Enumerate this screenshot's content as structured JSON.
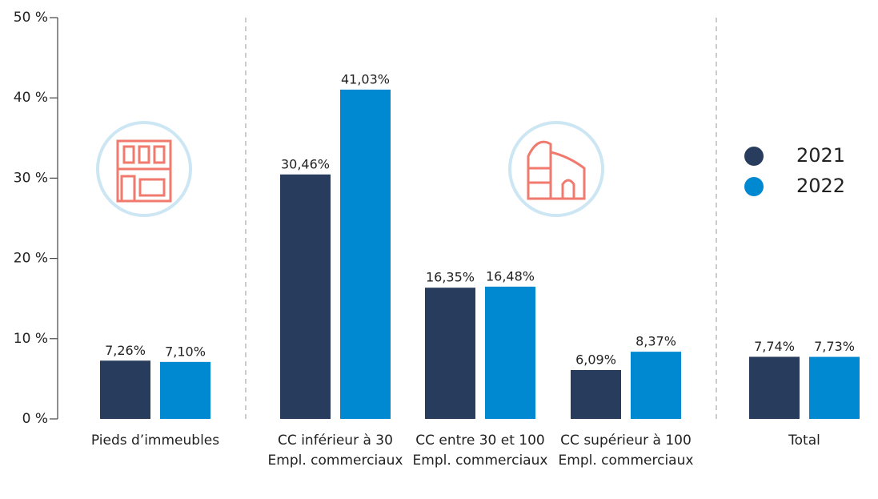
{
  "chart_data": {
    "type": "bar",
    "categories": [
      "Pieds d’immeubles",
      "CC inférieur à 30 Empl. commerciaux",
      "CC entre 30 et 100 Empl. commerciaux",
      "CC supérieur à 100 Empl. commerciaux",
      "Total"
    ],
    "series": [
      {
        "name": "2021",
        "color": "#283d5e",
        "values": [
          7.26,
          30.46,
          16.35,
          6.09,
          7.74
        ],
        "value_labels": [
          "7,26%",
          "30,46%",
          "16,35%",
          "6,09%",
          "7,74%"
        ]
      },
      {
        "name": "2022",
        "color": "#0088d1",
        "values": [
          7.1,
          41.03,
          16.48,
          8.37,
          7.73
        ],
        "value_labels": [
          "7,10%",
          "41,03%",
          "16,48%",
          "8,37%",
          "7,73%"
        ]
      }
    ],
    "ylim": [
      0,
      50
    ],
    "yticks": [
      {
        "value": 0,
        "label": "0 %"
      },
      {
        "value": 10,
        "label": "10 %"
      },
      {
        "value": 20,
        "label": "20 %"
      },
      {
        "value": 30,
        "label": "30 %"
      },
      {
        "value": 40,
        "label": "40 %"
      },
      {
        "value": 50,
        "label": "50 %"
      }
    ],
    "legend": "right"
  }
}
